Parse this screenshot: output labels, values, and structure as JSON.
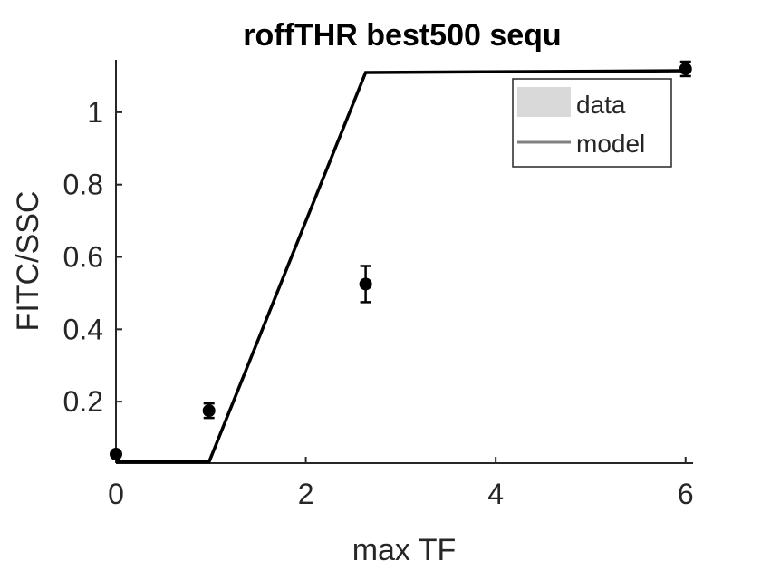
{
  "chart_data": {
    "type": "line",
    "title": "roffTHR best500 sequ",
    "xlabel": "max TF",
    "ylabel": "FITC/SSC",
    "xlim": [
      0,
      6.05
    ],
    "ylim": [
      0.03,
      1.145
    ],
    "x_ticks": [
      0,
      2,
      4,
      6
    ],
    "x_tick_labels": [
      "0",
      "2",
      "4",
      "6"
    ],
    "y_ticks": [
      0.2,
      0.4,
      0.6,
      0.8,
      1.0
    ],
    "y_tick_labels": [
      "0.2",
      "0.4",
      "0.6",
      "0.8",
      "1"
    ],
    "grid": false,
    "legend": {
      "position": "top-right",
      "entries": [
        {
          "label": "data",
          "swatch": "patch",
          "color": "#d9d9d9"
        },
        {
          "label": "model",
          "swatch": "line",
          "color": "#808080"
        }
      ]
    },
    "series": [
      {
        "name": "data",
        "kind": "errorbar",
        "color": "#000000",
        "points": [
          {
            "x": 0.0,
            "y": 0.055,
            "err": 0.0
          },
          {
            "x": 0.98,
            "y": 0.175,
            "err": 0.02
          },
          {
            "x": 2.63,
            "y": 0.525,
            "err": 0.05
          },
          {
            "x": 6.0,
            "y": 1.12,
            "err": 0.02
          }
        ]
      },
      {
        "name": "model",
        "kind": "line",
        "color": "#000000",
        "points": [
          {
            "x": 0.0,
            "y": 0.033
          },
          {
            "x": 0.98,
            "y": 0.033
          },
          {
            "x": 2.63,
            "y": 1.11
          },
          {
            "x": 6.05,
            "y": 1.115
          }
        ]
      }
    ]
  }
}
